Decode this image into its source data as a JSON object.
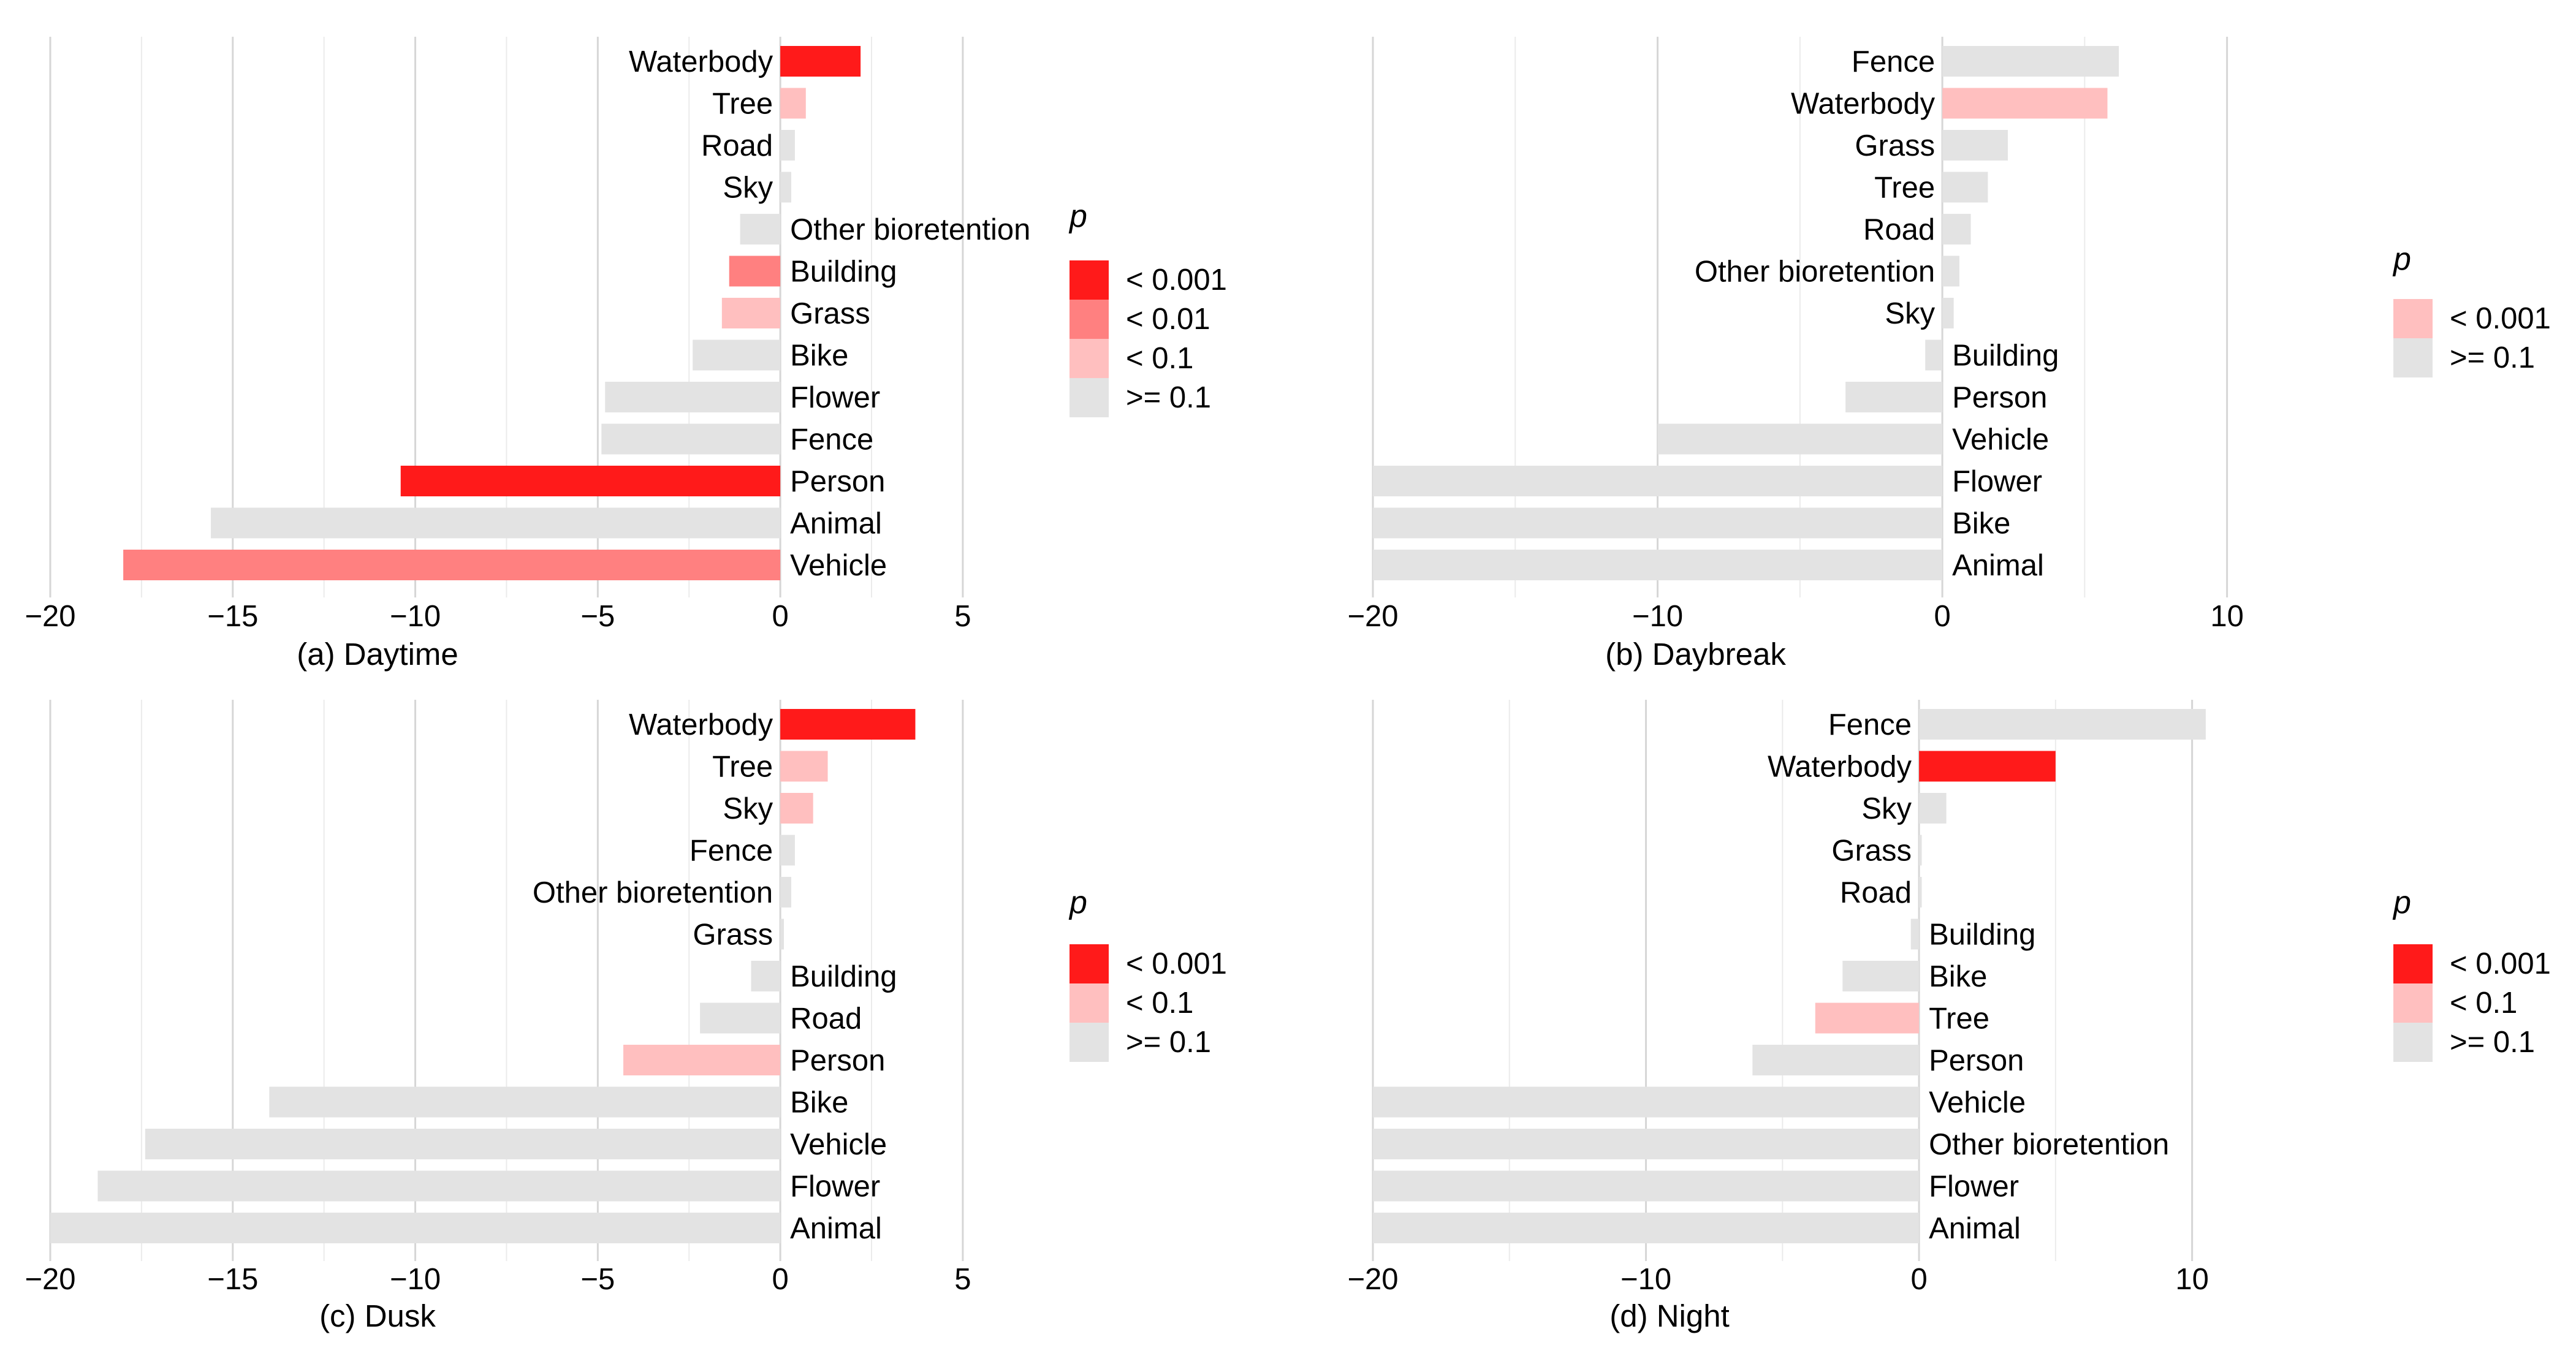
{
  "chart_data": [
    {
      "type": "bar",
      "orientation": "horizontal",
      "title": "(a) Daytime",
      "xlim": [
        -20,
        7
      ],
      "xticks": [
        -20,
        -15,
        -10,
        -5,
        0,
        5
      ],
      "xtick_labels": [
        "−20",
        "−15",
        "−10",
        "−5",
        "0",
        "5"
      ],
      "categories": [
        "Waterbody",
        "Tree",
        "Road",
        "Sky",
        "Other bioretention",
        "Building",
        "Grass",
        "Bike",
        "Flower",
        "Fence",
        "Person",
        "Animal",
        "Vehicle"
      ],
      "values": [
        2.2,
        0.7,
        0.4,
        0.3,
        -1.1,
        -1.4,
        -1.6,
        -2.4,
        -4.8,
        -4.9,
        -10.4,
        -15.6,
        -18.0
      ],
      "p_class": [
        "< 0.001",
        "< 0.1",
        ">= 0.1",
        ">= 0.1",
        ">= 0.1",
        "< 0.01",
        "< 0.1",
        ">= 0.1",
        ">= 0.1",
        ">= 0.1",
        "< 0.001",
        ">= 0.1",
        "< 0.01"
      ],
      "legend": {
        "title": "p",
        "entries": [
          {
            "label": "< 0.001",
            "color": "#ff1a1a"
          },
          {
            "label": "< 0.01",
            "color": "#ff8080"
          },
          {
            "label": "< 0.1",
            "color": "#ffbfbf"
          },
          {
            "label": ">= 0.1",
            "color": "#e3e3e3"
          }
        ]
      }
    },
    {
      "type": "bar",
      "orientation": "horizontal",
      "title": "(b) Daybreak",
      "xlim": [
        -20,
        13
      ],
      "xticks": [
        -20,
        -10,
        0,
        10
      ],
      "xtick_labels": [
        "−20",
        "−10",
        "0",
        "10"
      ],
      "categories": [
        "Fence",
        "Waterbody",
        "Grass",
        "Tree",
        "Road",
        "Other bioretention",
        "Sky",
        "Building",
        "Person",
        "Vehicle",
        "Flower",
        "Bike",
        "Animal"
      ],
      "values": [
        6.2,
        5.8,
        2.3,
        1.6,
        1.0,
        0.6,
        0.4,
        -0.6,
        -3.4,
        -10.0,
        -20.0,
        -20.0,
        -20.0
      ],
      "p_class": [
        ">= 0.1",
        "< 0.001",
        ">= 0.1",
        ">= 0.1",
        ">= 0.1",
        ">= 0.1",
        ">= 0.1",
        ">= 0.1",
        ">= 0.1",
        ">= 0.1",
        ">= 0.1",
        ">= 0.1",
        ">= 0.1"
      ],
      "legend": {
        "title": "p",
        "entries": [
          {
            "label": "< 0.001",
            "color": "#ffbfbf"
          },
          {
            "label": ">= 0.1",
            "color": "#e3e3e3"
          }
        ]
      }
    },
    {
      "type": "bar",
      "orientation": "horizontal",
      "title": "(c) Dusk",
      "xlim": [
        -20,
        7
      ],
      "xticks": [
        -20,
        -15,
        -10,
        -5,
        0,
        5
      ],
      "xtick_labels": [
        "−20",
        "−15",
        "−10",
        "−5",
        "0",
        "5"
      ],
      "categories": [
        "Waterbody",
        "Tree",
        "Sky",
        "Fence",
        "Other bioretention",
        "Grass",
        "Building",
        "Road",
        "Person",
        "Bike",
        "Vehicle",
        "Flower",
        "Animal"
      ],
      "values": [
        3.7,
        1.3,
        0.9,
        0.4,
        0.3,
        0.1,
        -0.8,
        -2.2,
        -4.3,
        -14.0,
        -17.4,
        -18.7,
        -20.0
      ],
      "p_class": [
        "< 0.001",
        "< 0.1",
        "< 0.1",
        ">= 0.1",
        ">= 0.1",
        ">= 0.1",
        ">= 0.1",
        ">= 0.1",
        "< 0.1",
        ">= 0.1",
        ">= 0.1",
        ">= 0.1",
        ">= 0.1"
      ],
      "legend": {
        "title": "p",
        "entries": [
          {
            "label": "< 0.001",
            "color": "#ff1a1a"
          },
          {
            "label": "< 0.1",
            "color": "#ffbfbf"
          },
          {
            "label": ">= 0.1",
            "color": "#e3e3e3"
          }
        ]
      }
    },
    {
      "type": "bar",
      "orientation": "horizontal",
      "title": "(d) Night",
      "xlim": [
        -20,
        12.5
      ],
      "xticks": [
        -20,
        -10,
        0,
        10
      ],
      "xtick_labels": [
        "−20",
        "−10",
        "0",
        "10"
      ],
      "categories": [
        "Fence",
        "Waterbody",
        "Sky",
        "Grass",
        "Road",
        "Building",
        "Bike",
        "Tree",
        "Person",
        "Vehicle",
        "Other bioretention",
        "Flower",
        "Animal"
      ],
      "values": [
        10.5,
        5.0,
        1.0,
        0.1,
        0.1,
        -0.3,
        -2.8,
        -3.8,
        -6.1,
        -20.0,
        -20.0,
        -20.0,
        -20.0
      ],
      "p_class": [
        ">= 0.1",
        "< 0.001",
        ">= 0.1",
        ">= 0.1",
        ">= 0.1",
        ">= 0.1",
        ">= 0.1",
        "< 0.1",
        ">= 0.1",
        ">= 0.1",
        ">= 0.1",
        ">= 0.1",
        ">= 0.1"
      ],
      "legend": {
        "title": "p",
        "entries": [
          {
            "label": "< 0.001",
            "color": "#ff1a1a"
          },
          {
            "label": "< 0.1",
            "color": "#ffbfbf"
          },
          {
            "label": ">= 0.1",
            "color": "#e3e3e3"
          }
        ]
      }
    }
  ]
}
